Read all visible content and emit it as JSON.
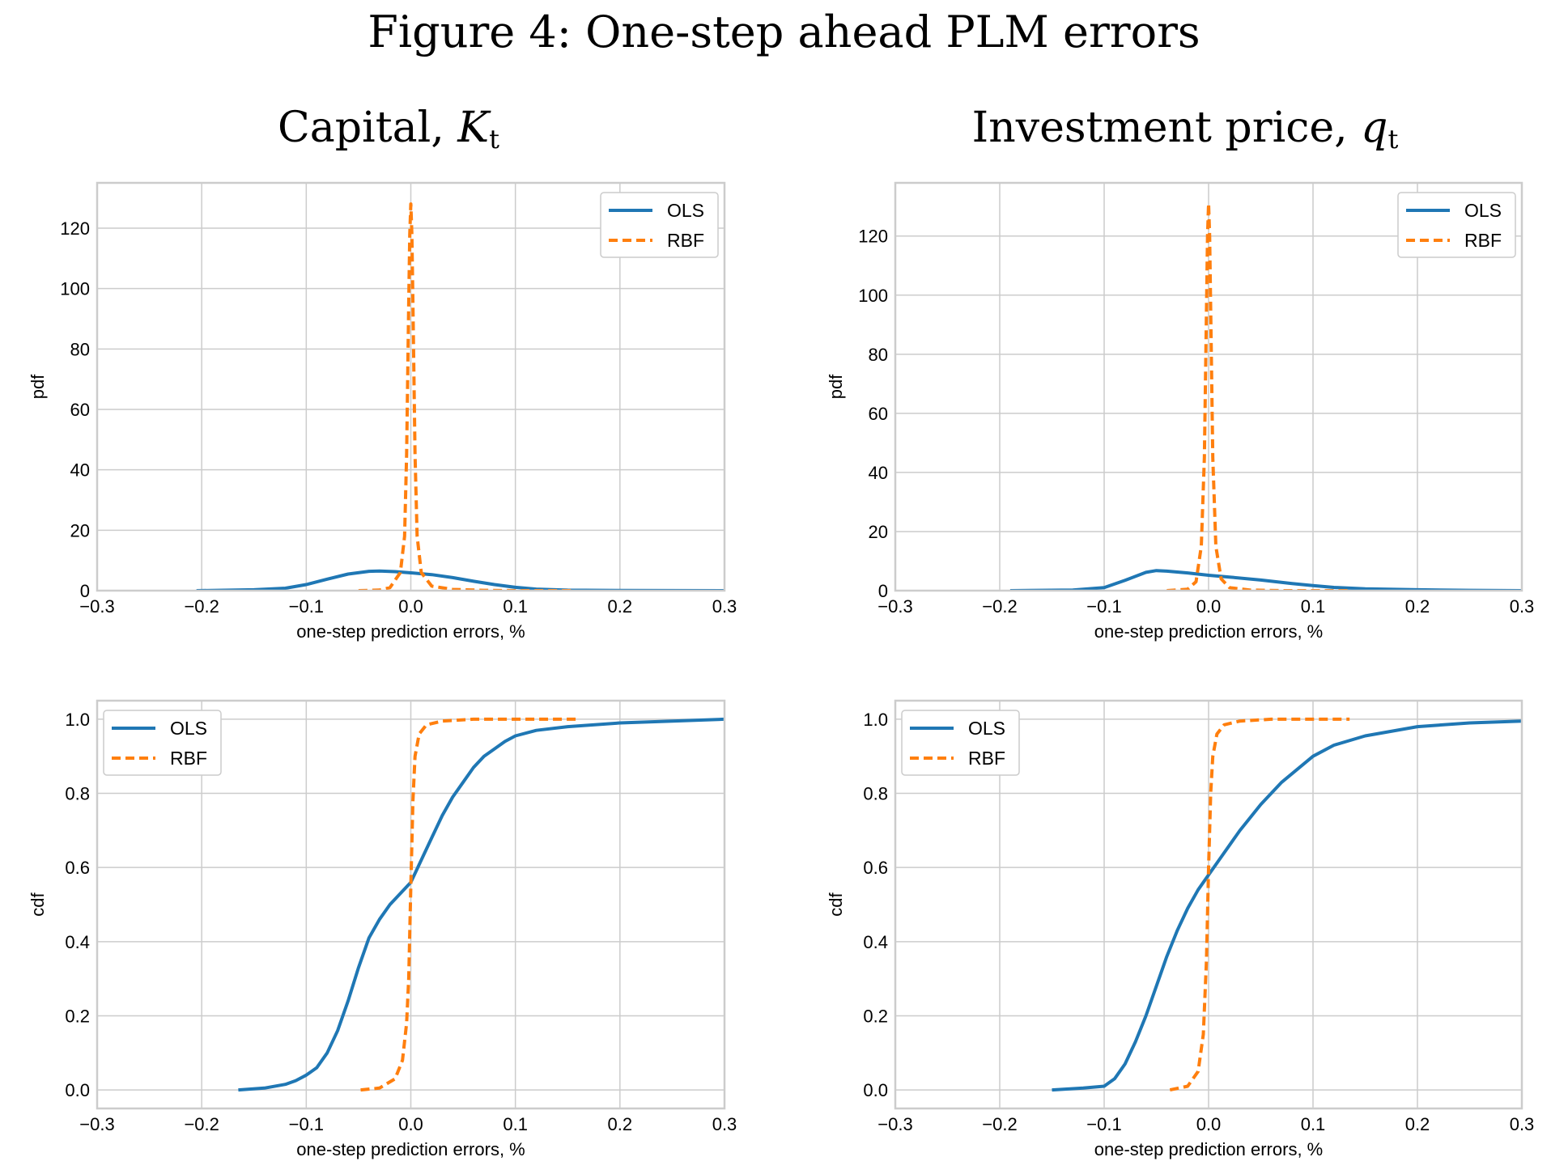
{
  "figure_title": "Figure 4: One-step ahead PLM errors",
  "columns": [
    {
      "title_text": "Capital, ",
      "symbol": "K",
      "subscript": "t"
    },
    {
      "title_text": "Investment price, ",
      "symbol": "q",
      "subscript": "t"
    }
  ],
  "colors": {
    "OLS": "#1f77b4",
    "RBF": "#ff7f0e",
    "grid": "#cccccc",
    "frame": "#cccccc"
  },
  "chart_data": [
    {
      "id": "capital-pdf",
      "type": "line",
      "xlabel": "one-step prediction errors, %",
      "ylabel": "pdf",
      "xlim": [
        -0.3,
        0.3
      ],
      "ylim": [
        0,
        135
      ],
      "xticks": [
        -0.3,
        -0.2,
        -0.1,
        0.0,
        0.1,
        0.2,
        0.3
      ],
      "xtick_labels": [
        "−0.3",
        "−0.2",
        "−0.1",
        "0.0",
        "0.1",
        "0.2",
        "0.3"
      ],
      "yticks": [
        0,
        20,
        40,
        60,
        80,
        100,
        120
      ],
      "ytick_labels": [
        "0",
        "20",
        "40",
        "60",
        "80",
        "100",
        "120"
      ],
      "grid": true,
      "legend": "top-right",
      "series": [
        {
          "name": "OLS",
          "style": "solid",
          "x": [
            -0.205,
            -0.15,
            -0.12,
            -0.1,
            -0.08,
            -0.06,
            -0.04,
            -0.03,
            -0.015,
            0.0,
            0.02,
            0.04,
            0.06,
            0.08,
            0.1,
            0.12,
            0.15,
            0.2,
            0.3
          ],
          "y": [
            0.0,
            0.3,
            0.8,
            2.0,
            3.8,
            5.5,
            6.4,
            6.5,
            6.3,
            5.9,
            5.3,
            4.3,
            3.1,
            2.0,
            1.1,
            0.5,
            0.15,
            0.05,
            0.0
          ]
        },
        {
          "name": "RBF",
          "style": "dashed",
          "x": [
            -0.05,
            -0.03,
            -0.02,
            -0.01,
            -0.006,
            -0.004,
            -0.002,
            -0.001,
            0.0,
            0.001,
            0.002,
            0.004,
            0.006,
            0.01,
            0.02,
            0.04,
            0.07,
            0.1,
            0.155
          ],
          "y": [
            0.0,
            0.2,
            1.0,
            6.0,
            18.0,
            45.0,
            95.0,
            118.0,
            128.0,
            118.0,
            95.0,
            45.0,
            18.0,
            6.0,
            1.5,
            0.4,
            0.1,
            0.0,
            0.0
          ]
        }
      ]
    },
    {
      "id": "investment-pdf",
      "type": "line",
      "xlabel": "one-step prediction errors, %",
      "ylabel": "pdf",
      "xlim": [
        -0.3,
        0.3
      ],
      "ylim": [
        0,
        138
      ],
      "xticks": [
        -0.3,
        -0.2,
        -0.1,
        0.0,
        0.1,
        0.2,
        0.3
      ],
      "xtick_labels": [
        "−0.3",
        "−0.2",
        "−0.1",
        "0.0",
        "0.1",
        "0.2",
        "0.3"
      ],
      "yticks": [
        0,
        20,
        40,
        60,
        80,
        100,
        120
      ],
      "ytick_labels": [
        "0",
        "20",
        "40",
        "60",
        "80",
        "100",
        "120"
      ],
      "grid": true,
      "legend": "top-right",
      "series": [
        {
          "name": "OLS",
          "style": "solid",
          "x": [
            -0.19,
            -0.13,
            -0.1,
            -0.08,
            -0.06,
            -0.05,
            -0.04,
            -0.02,
            0.0,
            0.02,
            0.05,
            0.08,
            0.1,
            0.12,
            0.15,
            0.2,
            0.25,
            0.3
          ],
          "y": [
            0.0,
            0.2,
            1.0,
            3.5,
            6.2,
            6.8,
            6.6,
            6.0,
            5.2,
            4.6,
            3.6,
            2.4,
            1.7,
            1.1,
            0.6,
            0.3,
            0.1,
            0.0
          ]
        },
        {
          "name": "RBF",
          "style": "dashed",
          "x": [
            -0.04,
            -0.02,
            -0.012,
            -0.007,
            -0.004,
            -0.002,
            -0.001,
            0.0,
            0.001,
            0.002,
            0.004,
            0.007,
            0.012,
            0.02,
            0.04,
            0.07,
            0.1,
            0.135
          ],
          "y": [
            0.0,
            0.5,
            3.0,
            15.0,
            45.0,
            95.0,
            120.0,
            131.0,
            120.0,
            95.0,
            45.0,
            15.0,
            4.0,
            1.0,
            0.2,
            0.0,
            0.0,
            0.0
          ]
        }
      ]
    },
    {
      "id": "capital-cdf",
      "type": "line",
      "xlabel": "one-step prediction errors, %",
      "ylabel": "cdf",
      "xlim": [
        -0.3,
        0.3
      ],
      "ylim": [
        -0.05,
        1.05
      ],
      "xticks": [
        -0.3,
        -0.2,
        -0.1,
        0.0,
        0.1,
        0.2,
        0.3
      ],
      "xtick_labels": [
        "−0.3",
        "−0.2",
        "−0.1",
        "0.0",
        "0.1",
        "0.2",
        "0.3"
      ],
      "yticks": [
        0.0,
        0.2,
        0.4,
        0.6,
        0.8,
        1.0
      ],
      "ytick_labels": [
        "0.0",
        "0.2",
        "0.4",
        "0.6",
        "0.8",
        "1.0"
      ],
      "grid": true,
      "legend": "top-left",
      "series": [
        {
          "name": "OLS",
          "style": "solid",
          "x": [
            -0.165,
            -0.14,
            -0.12,
            -0.11,
            -0.1,
            -0.09,
            -0.08,
            -0.07,
            -0.06,
            -0.05,
            -0.04,
            -0.03,
            -0.02,
            -0.01,
            0.0,
            0.01,
            0.02,
            0.03,
            0.04,
            0.05,
            0.06,
            0.07,
            0.08,
            0.09,
            0.1,
            0.12,
            0.15,
            0.2,
            0.25,
            0.3
          ],
          "y": [
            0.0,
            0.005,
            0.015,
            0.025,
            0.04,
            0.06,
            0.1,
            0.16,
            0.24,
            0.33,
            0.41,
            0.46,
            0.5,
            0.53,
            0.56,
            0.62,
            0.68,
            0.74,
            0.79,
            0.83,
            0.87,
            0.9,
            0.92,
            0.94,
            0.955,
            0.97,
            0.98,
            0.99,
            0.995,
            1.0
          ]
        },
        {
          "name": "RBF",
          "style": "dashed",
          "x": [
            -0.048,
            -0.03,
            -0.015,
            -0.008,
            -0.004,
            -0.002,
            0.0,
            0.002,
            0.004,
            0.008,
            0.015,
            0.03,
            0.06,
            0.1,
            0.16
          ],
          "y": [
            0.0,
            0.005,
            0.03,
            0.08,
            0.18,
            0.3,
            0.55,
            0.78,
            0.9,
            0.96,
            0.985,
            0.995,
            1.0,
            1.0,
            1.0
          ]
        }
      ]
    },
    {
      "id": "investment-cdf",
      "type": "line",
      "xlabel": "one-step prediction errors, %",
      "ylabel": "cdf",
      "xlim": [
        -0.3,
        0.3
      ],
      "ylim": [
        -0.05,
        1.05
      ],
      "xticks": [
        -0.3,
        -0.2,
        -0.1,
        0.0,
        0.1,
        0.2,
        0.3
      ],
      "xtick_labels": [
        "−0.3",
        "−0.2",
        "−0.1",
        "0.0",
        "0.1",
        "0.2",
        "0.3"
      ],
      "yticks": [
        0.0,
        0.2,
        0.4,
        0.6,
        0.8,
        1.0
      ],
      "ytick_labels": [
        "0.0",
        "0.2",
        "0.4",
        "0.6",
        "0.8",
        "1.0"
      ],
      "grid": true,
      "legend": "top-left",
      "series": [
        {
          "name": "OLS",
          "style": "solid",
          "x": [
            -0.15,
            -0.12,
            -0.1,
            -0.09,
            -0.08,
            -0.07,
            -0.06,
            -0.05,
            -0.04,
            -0.03,
            -0.02,
            -0.01,
            0.0,
            0.01,
            0.02,
            0.03,
            0.05,
            0.07,
            0.1,
            0.12,
            0.15,
            0.2,
            0.25,
            0.3
          ],
          "y": [
            0.0,
            0.005,
            0.01,
            0.03,
            0.07,
            0.13,
            0.2,
            0.28,
            0.36,
            0.43,
            0.49,
            0.54,
            0.58,
            0.62,
            0.66,
            0.7,
            0.77,
            0.83,
            0.9,
            0.93,
            0.955,
            0.98,
            0.99,
            0.995
          ]
        },
        {
          "name": "RBF",
          "style": "dashed",
          "x": [
            -0.037,
            -0.02,
            -0.01,
            -0.005,
            -0.002,
            0.0,
            0.002,
            0.004,
            0.008,
            0.015,
            0.03,
            0.06,
            0.1,
            0.135
          ],
          "y": [
            0.0,
            0.01,
            0.05,
            0.15,
            0.35,
            0.6,
            0.8,
            0.9,
            0.96,
            0.985,
            0.995,
            1.0,
            1.0,
            1.0
          ]
        }
      ]
    }
  ]
}
